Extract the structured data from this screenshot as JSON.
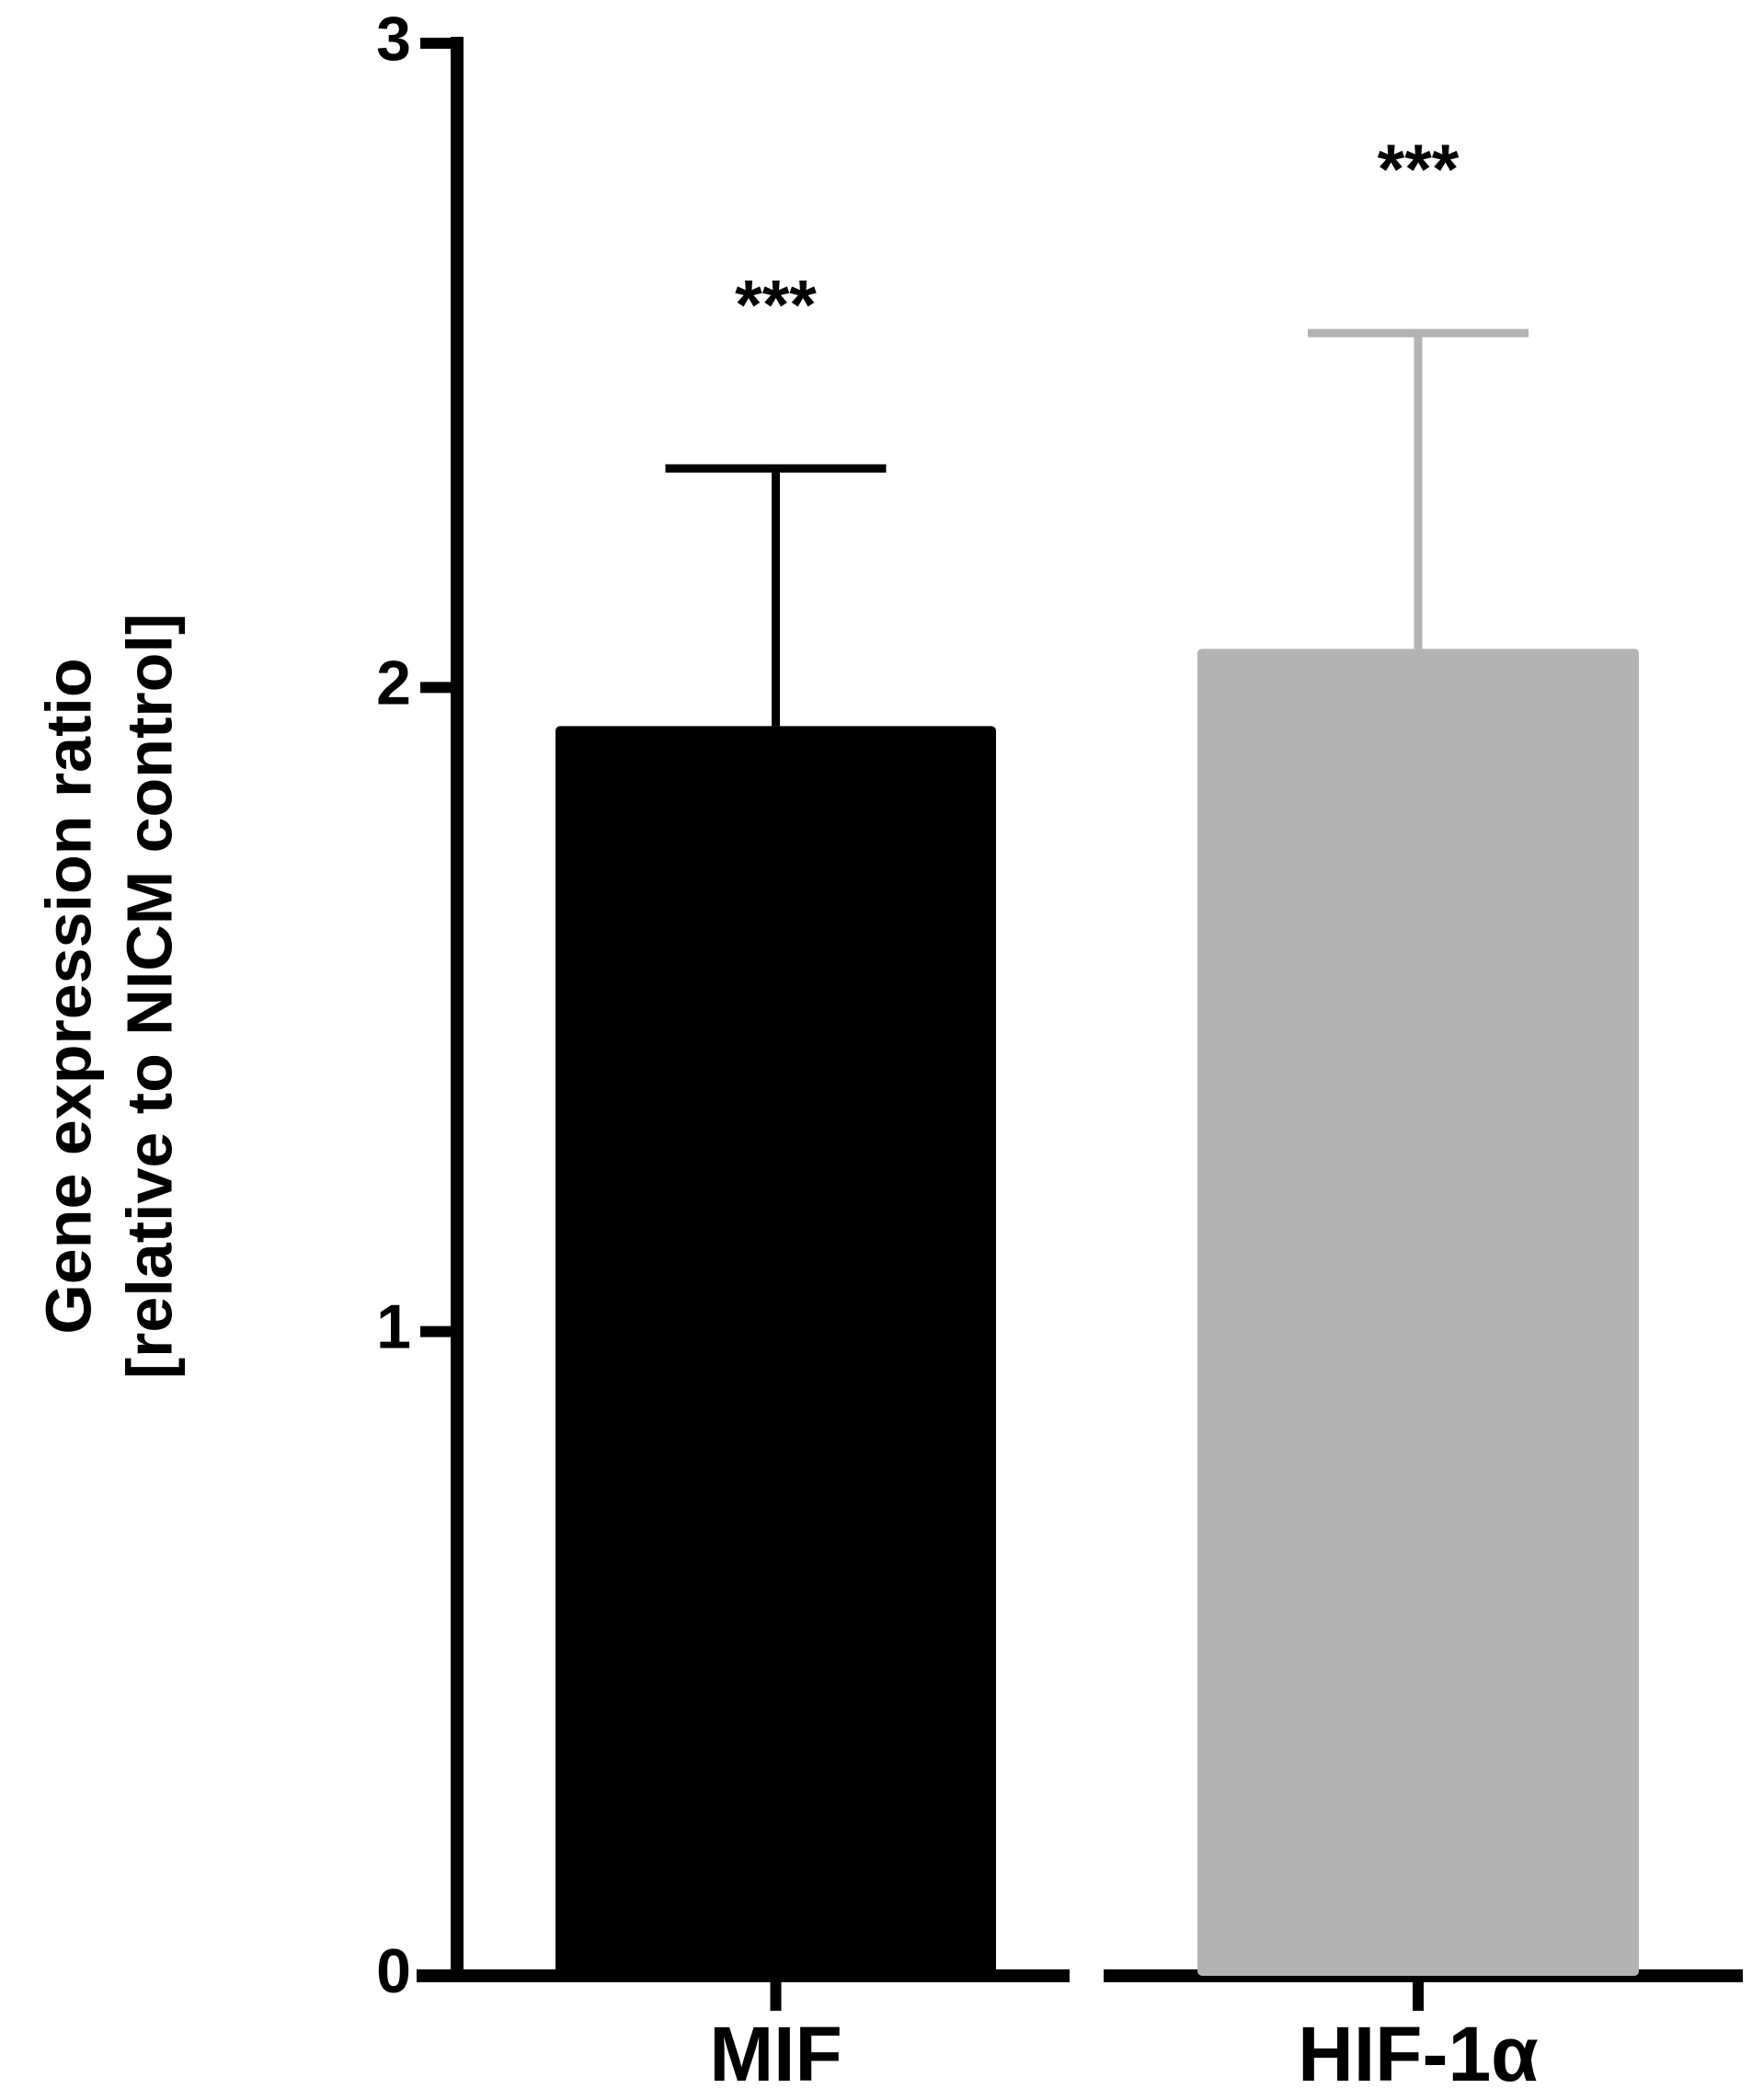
{
  "chart_data": {
    "type": "bar",
    "ylabel": [
      "Gene expression ratio",
      "[relative to NICM control]"
    ],
    "categories": [
      "MIF",
      "HIF-1α"
    ],
    "values": [
      1.94,
      2.06
    ],
    "errors": [
      0.4,
      0.49
    ],
    "colors": [
      "#000000",
      "#b3b3b3"
    ],
    "annotations": [
      "***",
      "***"
    ],
    "ylim": [
      0,
      3
    ],
    "yticks": [
      0,
      1,
      2,
      3
    ],
    "grid": false
  }
}
